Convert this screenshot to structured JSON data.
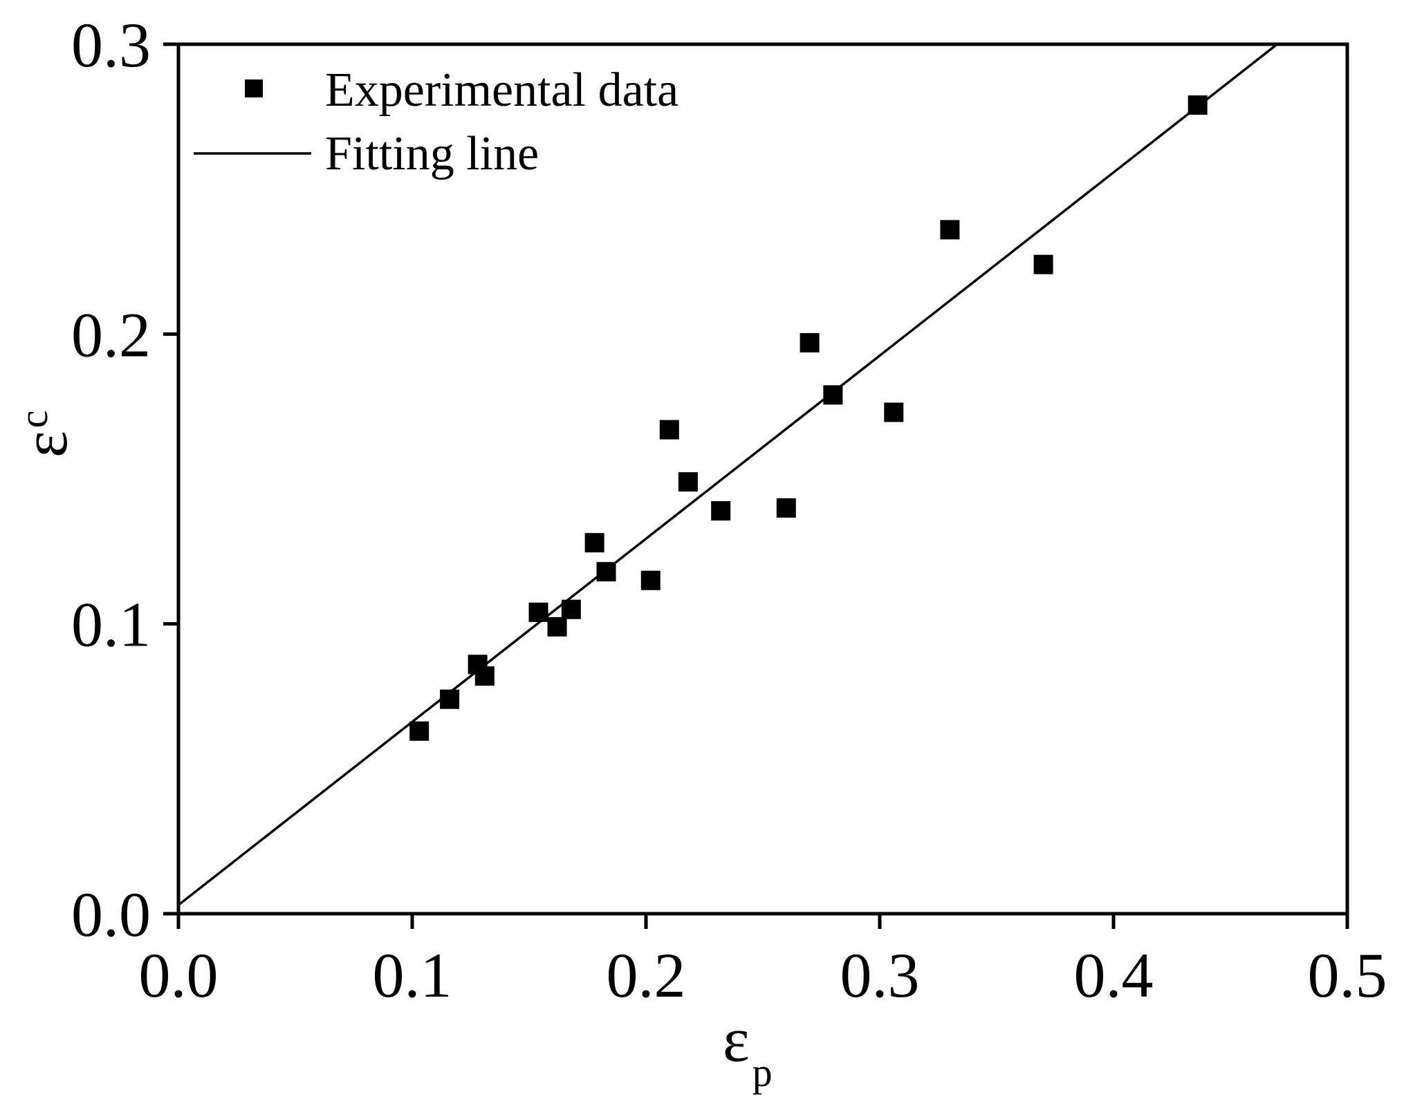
{
  "chart_data": {
    "type": "scatter",
    "title": "",
    "xlabel": "ε",
    "xlabel_subscript": "p",
    "ylabel": "ε",
    "ylabel_subscript": "c",
    "xlim": [
      0.0,
      0.5
    ],
    "ylim": [
      0.0,
      0.3
    ],
    "x_ticks": [
      0.0,
      0.1,
      0.2,
      0.3,
      0.4,
      0.5
    ],
    "x_tick_labels": [
      "0.0",
      "0.1",
      "0.2",
      "0.3",
      "0.4",
      "0.5"
    ],
    "y_ticks": [
      0.0,
      0.1,
      0.2,
      0.3
    ],
    "y_tick_labels": [
      "0.0",
      "0.1",
      "0.2",
      "0.3"
    ],
    "grid": false,
    "legend_position": "top-left",
    "series": [
      {
        "name": "Experimental data",
        "kind": "scatter",
        "marker": "square",
        "x": [
          0.103,
          0.116,
          0.128,
          0.131,
          0.154,
          0.162,
          0.168,
          0.178,
          0.183,
          0.202,
          0.21,
          0.218,
          0.232,
          0.26,
          0.27,
          0.28,
          0.306,
          0.33,
          0.37,
          0.436
        ],
        "y": [
          0.063,
          0.074,
          0.086,
          0.082,
          0.104,
          0.099,
          0.105,
          0.128,
          0.118,
          0.115,
          0.167,
          0.149,
          0.139,
          0.14,
          0.197,
          0.179,
          0.173,
          0.236,
          0.224,
          0.279
        ]
      },
      {
        "name": "Fitting line",
        "kind": "line",
        "x": [
          0.0,
          0.47
        ],
        "y": [
          0.003,
          0.3
        ]
      }
    ],
    "colors": {
      "marker": "#000000",
      "line": "#000000",
      "axis": "#000000"
    }
  }
}
